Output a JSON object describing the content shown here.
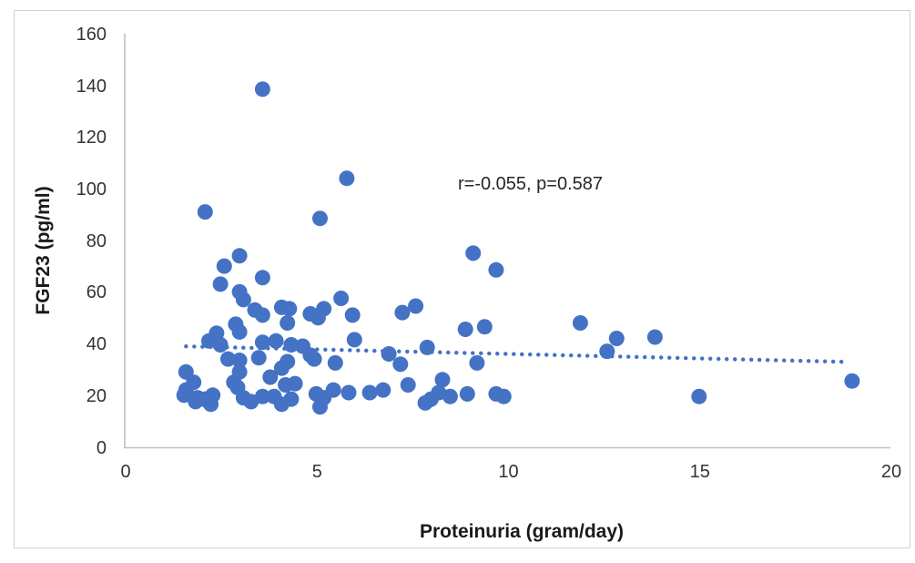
{
  "chart_data": {
    "type": "scatter",
    "title": "",
    "xlabel": "Proteinuria (gram/day)",
    "ylabel": "FGF23 (pg/ml)",
    "annotation": "r=-0.055, p=0.587",
    "xlim": [
      0,
      20
    ],
    "ylim": [
      0,
      160
    ],
    "x_ticks": [
      0,
      5,
      10,
      15,
      20
    ],
    "y_ticks": [
      0,
      20,
      40,
      60,
      80,
      100,
      120,
      140,
      160
    ],
    "grid": false,
    "legend": "none",
    "point_color": "#4472C4",
    "axis_color": "#BFBFBF",
    "frame_color": "#D2D2D2",
    "text_color": "#333333",
    "trendline": {
      "style": "dotted",
      "x1": 1.6,
      "y1": 38.9,
      "x2": 18.8,
      "y2": 32.9
    },
    "points": [
      [
        3.6,
        138.5
      ],
      [
        5.8,
        104
      ],
      [
        2.1,
        91
      ],
      [
        5.1,
        88.5
      ],
      [
        9.1,
        75
      ],
      [
        3.0,
        74
      ],
      [
        2.6,
        70
      ],
      [
        9.7,
        68.5
      ],
      [
        3.6,
        65.5
      ],
      [
        2.5,
        63
      ],
      [
        3.0,
        60
      ],
      [
        3.1,
        57
      ],
      [
        5.65,
        57.5
      ],
      [
        5.2,
        53.5
      ],
      [
        5.95,
        51
      ],
      [
        5.05,
        50
      ],
      [
        4.85,
        51.5
      ],
      [
        3.4,
        53
      ],
      [
        3.6,
        51
      ],
      [
        4.1,
        54
      ],
      [
        4.3,
        53.5
      ],
      [
        7.25,
        52
      ],
      [
        7.6,
        54.5
      ],
      [
        2.9,
        47.5
      ],
      [
        4.25,
        48
      ],
      [
        8.9,
        45.5
      ],
      [
        9.4,
        46.5
      ],
      [
        11.9,
        48
      ],
      [
        12.6,
        37
      ],
      [
        12.85,
        42
      ],
      [
        13.85,
        42.5
      ],
      [
        2.4,
        44
      ],
      [
        3.0,
        44.5
      ],
      [
        2.2,
        41
      ],
      [
        2.5,
        39.5
      ],
      [
        3.6,
        40.5
      ],
      [
        3.95,
        41
      ],
      [
        4.35,
        39.5
      ],
      [
        4.65,
        39
      ],
      [
        6.0,
        41.5
      ],
      [
        6.9,
        36
      ],
      [
        7.9,
        38.5
      ],
      [
        3.5,
        34.5
      ],
      [
        3.0,
        33.5
      ],
      [
        2.7,
        34
      ],
      [
        4.25,
        33
      ],
      [
        4.85,
        35.5
      ],
      [
        4.95,
        34
      ],
      [
        5.5,
        32.5
      ],
      [
        7.2,
        32
      ],
      [
        9.2,
        32.5
      ],
      [
        1.6,
        29
      ],
      [
        3.0,
        29
      ],
      [
        4.1,
        30.5
      ],
      [
        3.8,
        27
      ],
      [
        1.8,
        25
      ],
      [
        2.85,
        25
      ],
      [
        1.6,
        22
      ],
      [
        2.3,
        20
      ],
      [
        1.9,
        19
      ],
      [
        2.15,
        18
      ],
      [
        2.95,
        23
      ],
      [
        4.2,
        24
      ],
      [
        4.45,
        24.5
      ],
      [
        1.55,
        20
      ],
      [
        1.85,
        17.5
      ],
      [
        2.1,
        18.5
      ],
      [
        2.25,
        16.5
      ],
      [
        3.1,
        19
      ],
      [
        3.3,
        17.5
      ],
      [
        3.6,
        19.5
      ],
      [
        3.9,
        19.5
      ],
      [
        4.1,
        16.5
      ],
      [
        4.35,
        18.5
      ],
      [
        5.0,
        20.5
      ],
      [
        5.2,
        19
      ],
      [
        5.45,
        22
      ],
      [
        5.1,
        15.5
      ],
      [
        5.85,
        21
      ],
      [
        6.4,
        21
      ],
      [
        6.75,
        22
      ],
      [
        7.4,
        24
      ],
      [
        8.3,
        26
      ],
      [
        8.0,
        18.5
      ],
      [
        7.85,
        17
      ],
      [
        8.2,
        21
      ],
      [
        8.5,
        19.5
      ],
      [
        8.95,
        20.5
      ],
      [
        9.7,
        20.5
      ],
      [
        9.9,
        19.5
      ],
      [
        15.0,
        19.5
      ],
      [
        19.0,
        25.5
      ]
    ]
  }
}
